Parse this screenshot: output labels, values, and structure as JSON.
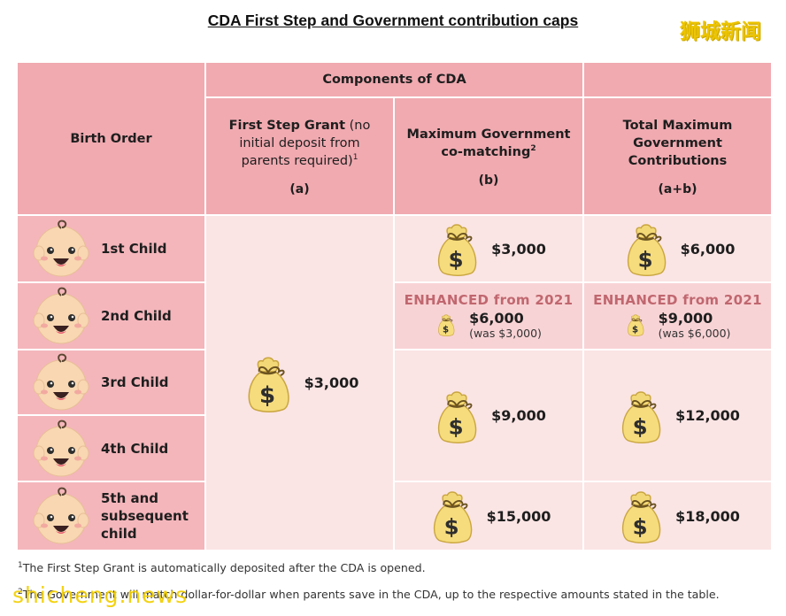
{
  "title": "CDA First Step and Government contribution caps",
  "watermark_top": "狮城新闻",
  "watermark_bottom": "shicheng.news",
  "header": {
    "birth_order": "Birth Order",
    "components": "Components of CDA",
    "col_a_bold": "First Step Grant",
    "col_a_rest": " (no initial deposit from parents required)",
    "col_a_sup": "1",
    "col_a_label": "(a)",
    "col_b_line1": "Maximum Government",
    "col_b_line2": "co-matching",
    "col_b_sup": "2",
    "col_b_label": "(b)",
    "col_c_line1": "Total Maximum",
    "col_c_line2": "Government",
    "col_c_line3": "Contributions",
    "col_c_label": "(a+b)"
  },
  "rows": [
    {
      "label": "1st Child"
    },
    {
      "label": "2nd Child"
    },
    {
      "label": "3rd Child"
    },
    {
      "label": "4th Child"
    },
    {
      "label": "5th and subsequent child"
    }
  ],
  "first_step_grant": "$3,000",
  "comatching": {
    "first": "$3,000",
    "second_title": "ENHANCED from 2021",
    "second_value": "$6,000",
    "second_was": "(was $3,000)",
    "third_fourth": "$9,000",
    "fifth": "$15,000"
  },
  "total": {
    "first": "$6,000",
    "second_title": "ENHANCED from 2021",
    "second_value": "$9,000",
    "second_was": "(was $6,000)",
    "third_fourth": "$12,000",
    "fifth": "$18,000"
  },
  "footnotes": {
    "f1_sup": "1",
    "f1": "The First Step Grant is automatically deposited after the CDA is opened.",
    "f2_sup": "2",
    "f2": "The Government will match dollar-for-dollar when parents save in the CDA, up to the respective amounts stated in the table."
  },
  "icons": {
    "money_bag": "money-bag-icon",
    "baby_face": "baby-face-icon"
  },
  "colors": {
    "header_pink": "#f0aab0",
    "row_pink": "#f4b6bb",
    "cell_light": "#fbe4e4",
    "cell_mid": "#f8d3d5",
    "enhanced_text": "#c0676f",
    "watermark": "#ecc400"
  }
}
